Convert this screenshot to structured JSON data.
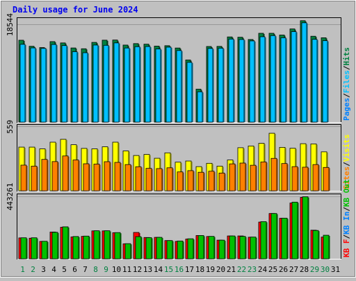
{
  "page_title": "Daily usage for June 2024",
  "chart_data": [
    {
      "type": "bar",
      "panel": "top",
      "title": "Daily usage for June 2024",
      "categories": [
        "1",
        "2",
        "3",
        "4",
        "5",
        "6",
        "7",
        "8",
        "9",
        "10",
        "11",
        "12",
        "13",
        "14",
        "15",
        "16",
        "17",
        "18",
        "19",
        "20",
        "21",
        "22",
        "23",
        "24",
        "25",
        "26",
        "27",
        "28",
        "29",
        "30",
        "31"
      ],
      "weekend_days": [
        "1",
        "2",
        "8",
        "9",
        "15",
        "16",
        "22",
        "23",
        "29",
        "30"
      ],
      "y_tick": 18544,
      "ylim": [
        0,
        19800
      ],
      "series": [
        {
          "name": "Hits",
          "color": "#008040",
          "values": [
            15580,
            14430,
            14180,
            15320,
            15070,
            14110,
            13960,
            15170,
            15590,
            15620,
            14660,
            14940,
            14830,
            14460,
            14540,
            14100,
            11830,
            6270,
            14390,
            14410,
            16210,
            16150,
            15720,
            16900,
            16900,
            16570,
            17730,
            19300,
            16340,
            16050,
            null
          ]
        },
        {
          "name": "Files",
          "color": "#00c0ff",
          "values": [
            14800,
            14120,
            14030,
            14770,
            14560,
            13400,
            13200,
            14660,
            14610,
            15070,
            14100,
            14350,
            14380,
            13920,
            14260,
            13620,
            11370,
            5770,
            14020,
            14070,
            15800,
            15720,
            15450,
            16240,
            16460,
            16050,
            17220,
            18900,
            15750,
            15490,
            null
          ]
        },
        {
          "name": "Pages",
          "color": "#0080ff",
          "values": [
            null,
            null,
            null,
            null,
            null,
            null,
            null,
            null,
            null,
            null,
            null,
            null,
            null,
            null,
            null,
            null,
            null,
            null,
            null,
            null,
            null,
            null,
            null,
            null,
            null,
            null,
            null,
            null,
            null,
            null,
            null
          ]
        }
      ],
      "right_labels": [
        {
          "text": "Pages",
          "color": "#0080ff"
        },
        {
          "text": "Files",
          "color": "#00c0ff"
        },
        {
          "text": "Hits",
          "color": "#008040"
        }
      ],
      "separator": "/"
    },
    {
      "type": "bar",
      "panel": "middle",
      "categories": [
        "1",
        "2",
        "3",
        "4",
        "5",
        "6",
        "7",
        "8",
        "9",
        "10",
        "11",
        "12",
        "13",
        "14",
        "15",
        "16",
        "17",
        "18",
        "19",
        "20",
        "21",
        "22",
        "23",
        "24",
        "25",
        "26",
        "27",
        "28",
        "29",
        "30",
        "31"
      ],
      "y_tick": 559,
      "ylim": [
        0,
        575
      ],
      "series": [
        {
          "name": "Visits",
          "color": "#ffff00",
          "values": [
            381,
            381,
            366,
            424,
            449,
            402,
            370,
            366,
            384,
            424,
            348,
            308,
            317,
            284,
            331,
            250,
            260,
            211,
            240,
            215,
            269,
            376,
            391,
            414,
            502,
            379,
            371,
            411,
            409,
            340,
            null
          ]
        },
        {
          "name": "Sites",
          "color": "#ff8000",
          "values": [
            224,
            215,
            274,
            255,
            304,
            269,
            236,
            233,
            254,
            248,
            229,
            210,
            196,
            194,
            201,
            165,
            176,
            162,
            171,
            155,
            235,
            242,
            223,
            252,
            283,
            238,
            211,
            206,
            229,
            204,
            null
          ]
        }
      ],
      "right_labels": [
        {
          "text": "Sites",
          "color": "#ff8000"
        },
        {
          "text": "Visits",
          "color": "#ffff00"
        }
      ],
      "separator": "/"
    },
    {
      "type": "bar",
      "panel": "bottom",
      "categories": [
        "1",
        "2",
        "3",
        "4",
        "5",
        "6",
        "7",
        "8",
        "9",
        "10",
        "11",
        "12",
        "13",
        "14",
        "15",
        "16",
        "17",
        "18",
        "19",
        "20",
        "21",
        "22",
        "23",
        "24",
        "25",
        "26",
        "27",
        "28",
        "29",
        "30",
        "31"
      ],
      "y_tick": 443261,
      "ylim": [
        0,
        460000
      ],
      "series": [
        {
          "name": "KB F",
          "color": "#ff0000",
          "values": [
            149000,
            147000,
            124000,
            191000,
            225000,
            156000,
            160000,
            199000,
            199000,
            186000,
            107000,
            188000,
            152000,
            153000,
            130000,
            124000,
            141000,
            166000,
            159000,
            133000,
            163000,
            163000,
            154000,
            262000,
            323000,
            289000,
            398000,
            438000,
            204000,
            155000,
            null
          ]
        },
        {
          "name": "KB In",
          "color": "#0080ff",
          "values": [
            null,
            null,
            null,
            null,
            null,
            null,
            null,
            null,
            null,
            null,
            null,
            null,
            null,
            null,
            null,
            null,
            null,
            null,
            null,
            null,
            null,
            null,
            null,
            null,
            null,
            null,
            null,
            null,
            null,
            null,
            null
          ]
        },
        {
          "name": "KB Out",
          "color": "#00c000",
          "values": [
            150000,
            150000,
            125000,
            189000,
            228000,
            159000,
            162000,
            200000,
            200000,
            187000,
            108000,
            158000,
            151000,
            153000,
            130000,
            127000,
            143000,
            166000,
            160000,
            133000,
            163000,
            160000,
            155000,
            265000,
            323000,
            290000,
            404000,
            442000,
            202000,
            168000,
            null
          ]
        }
      ],
      "right_labels": [
        {
          "text": "KB F",
          "color": "#ff0000"
        },
        {
          "text": "KB In",
          "color": "#0080ff"
        },
        {
          "text": "KB Out",
          "color": "#00c000"
        }
      ],
      "separator": "/"
    }
  ],
  "x_axis": {
    "weekend_color": "#008040",
    "weekday_color": "#000000"
  }
}
